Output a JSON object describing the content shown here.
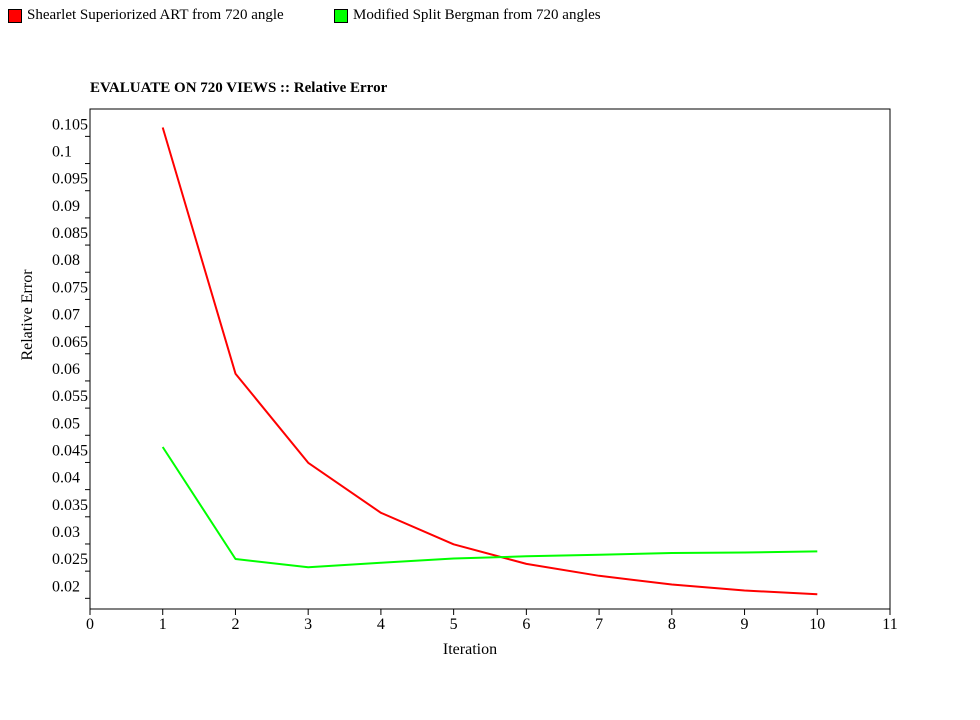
{
  "chart_data": {
    "type": "line",
    "title": "EVALUATE ON 720 VIEWS :: Relative Error",
    "xlabel": "Iteration",
    "ylabel": "Relative Error",
    "xlim": [
      0,
      11
    ],
    "ylim": [
      0.0173,
      0.1093
    ],
    "x_ticks": [
      0,
      1,
      2,
      3,
      4,
      5,
      6,
      7,
      8,
      9,
      10,
      11
    ],
    "y_ticks": [
      0.02,
      0.025,
      0.03,
      0.035,
      0.04,
      0.045,
      0.05,
      0.055,
      0.06,
      0.065,
      0.07,
      0.075,
      0.08,
      0.085,
      0.09,
      0.095,
      0.1,
      0.105
    ],
    "y_tick_labels": [
      "0.02",
      "0.025",
      "0.03",
      "0.035",
      "0.04",
      "0.045",
      "0.05",
      "0.055",
      "0.06",
      "0.065",
      "0.07",
      "0.075",
      "0.08",
      "0.085",
      "0.09",
      "0.095",
      "0.1",
      "0.105"
    ],
    "grid": false,
    "legend_position": "top-left",
    "series": [
      {
        "name": "Shearlet Superiorized ART from 720 angle",
        "color": "#ff0000",
        "x": [
          1,
          2,
          3,
          4,
          5,
          6,
          7,
          8,
          9,
          10
        ],
        "y": [
          0.1059,
          0.0606,
          0.0442,
          0.035,
          0.0292,
          0.0256,
          0.0234,
          0.0218,
          0.0207,
          0.02
        ]
      },
      {
        "name": "Modified Split Bergman from 720 angles",
        "color": "#00ff00",
        "x": [
          1,
          2,
          3,
          4,
          5,
          6,
          7,
          8,
          9,
          10
        ],
        "y": [
          0.0471,
          0.0265,
          0.025,
          0.0258,
          0.0266,
          0.027,
          0.0273,
          0.0276,
          0.0277,
          0.0279
        ]
      }
    ]
  }
}
